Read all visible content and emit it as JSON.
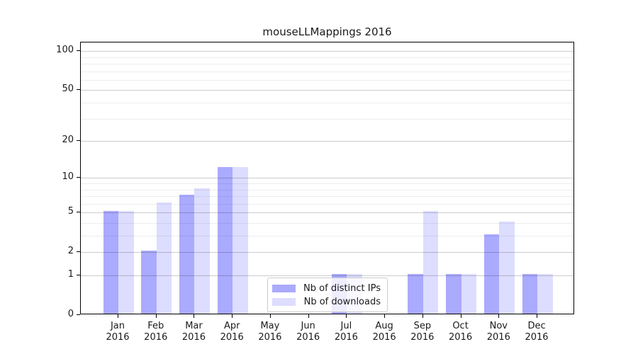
{
  "chart_data": {
    "type": "bar",
    "title": "mouseLLMappings 2016",
    "year": "2016",
    "categories": [
      "Jan",
      "Feb",
      "Mar",
      "Apr",
      "May",
      "Jun",
      "Jul",
      "Aug",
      "Sep",
      "Oct",
      "Nov",
      "Dec"
    ],
    "series": [
      {
        "name": "Nb of distinct IPs",
        "color": "#aaaaff",
        "values": [
          5,
          2,
          7,
          12,
          0,
          0,
          1,
          0,
          1,
          1,
          3,
          1
        ]
      },
      {
        "name": "Nb of downloads",
        "color": "#ddddff",
        "values": [
          5,
          6,
          8,
          12,
          0,
          0,
          1,
          0,
          5,
          1,
          4,
          1
        ]
      }
    ],
    "y_scale": "log10(1+x)",
    "y_axis_ticks": [
      0,
      1,
      2,
      5,
      10,
      20,
      50,
      100
    ],
    "y_minor_gridlines": [
      3,
      4,
      6,
      7,
      8,
      9,
      30,
      40,
      60,
      70,
      80,
      90
    ],
    "ylim": [
      0,
      116
    ],
    "grid": "on",
    "legend_position": "bottom-center-inside"
  },
  "colors": {
    "bar_ips": "#aaaaff",
    "bar_downloads": "#ddddff",
    "grid_major": "#cccccc",
    "grid_minor": "#ededed",
    "spine": "#000000",
    "text": "#1a1a1a",
    "legend_border": "#cccccc"
  }
}
